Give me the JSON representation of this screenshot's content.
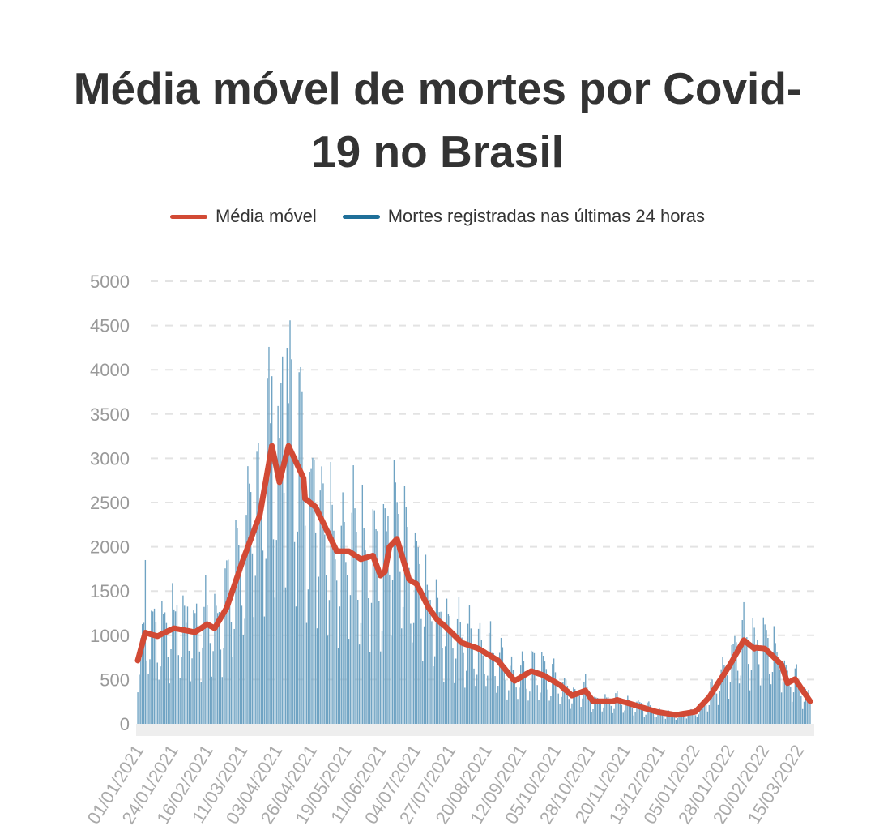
{
  "chart_data": {
    "type": "bar+line",
    "title_line1": "Média móvel de mortes por Covid-",
    "title_line2": "19 no Brasil",
    "legend": [
      {
        "name": "Média móvel",
        "color": "#d24a35"
      },
      {
        "name": "Mortes registradas nas últimas 24 horas",
        "color": "#1f6f99"
      }
    ],
    "ylim": [
      0,
      5000
    ],
    "yticks": [
      "0",
      "500",
      "1000",
      "1500",
      "2000",
      "2500",
      "3000",
      "3500",
      "4000",
      "4500",
      "5000"
    ],
    "ytick_values": [
      0,
      500,
      1000,
      1500,
      2000,
      2500,
      3000,
      3500,
      4000,
      4500,
      5000
    ],
    "grid": true,
    "x_start": "01/01/2021",
    "x_days": 450,
    "xticks": [
      "01/01/2021",
      "24/01/2021",
      "16/02/2021",
      "11/03/2021",
      "03/04/2021",
      "26/04/2021",
      "19/05/2021",
      "11/06/2021",
      "04/07/2021",
      "27/07/2021",
      "20/08/2021",
      "12/09/2021",
      "05/10/2021",
      "28/10/2021",
      "20/11/2021",
      "13/12/2021",
      "05/01/2022",
      "28/01/2022",
      "20/02/2022",
      "15/03/2022"
    ],
    "xtick_days": [
      0,
      23,
      46,
      69,
      92,
      115,
      138,
      161,
      184,
      207,
      231,
      254,
      277,
      300,
      323,
      346,
      369,
      392,
      415,
      438
    ],
    "moving_average": {
      "name": "Média móvel",
      "days": [
        0,
        5,
        13,
        24,
        38,
        46,
        51,
        59,
        70,
        81,
        89,
        94,
        100,
        110,
        111,
        118,
        132,
        140,
        148,
        156,
        161,
        164,
        167,
        172,
        180,
        185,
        193,
        199,
        204,
        215,
        226,
        239,
        250,
        261,
        269,
        280,
        288,
        297,
        302,
        315,
        318,
        330,
        344,
        357,
        370,
        379,
        393,
        402,
        409,
        410,
        416,
        427,
        431,
        436,
        446
      ],
      "values": [
        715,
        1030,
        990,
        1080,
        1035,
        1125,
        1080,
        1310,
        1860,
        2360,
        3140,
        2730,
        3140,
        2775,
        2545,
        2450,
        1950,
        1950,
        1860,
        1900,
        1675,
        1720,
        2000,
        2090,
        1630,
        1580,
        1310,
        1170,
        1100,
        915,
        850,
        715,
        485,
        595,
        550,
        440,
        320,
        375,
        255,
        255,
        270,
        210,
        137,
        100,
        137,
        300,
        670,
        945,
        850,
        860,
        850,
        670,
        460,
        505,
        255
      ]
    },
    "daily_deaths": {
      "name": "Mortes registradas nas últimas 24 horas",
      "weekday_factors": [
        0.5,
        0.7,
        1.3,
        1.35,
        1.2,
        1.1,
        0.8
      ],
      "peak_value": 4249
    }
  }
}
